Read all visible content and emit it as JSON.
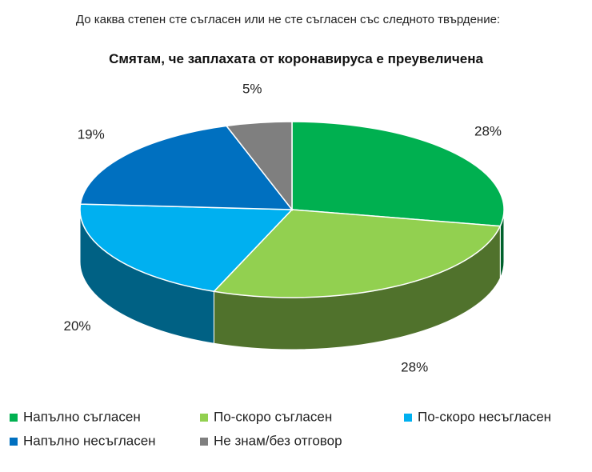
{
  "chart_data": {
    "type": "pie",
    "subtitle": "До каква степен сте съгласен или не сте съгласен със следното твърдение:",
    "title": "Смятам, че заплахата от коронавируса е преувеличена",
    "categories": [
      "Напълно съгласен",
      "По-скоро съгласен",
      "По-скоро несъгласен",
      "Напълно несъгласен",
      "Не знам/без отговор"
    ],
    "values": [
      28,
      28,
      20,
      19,
      5
    ],
    "value_labels": [
      "28%",
      "28%",
      "20%",
      "19%",
      "5%"
    ],
    "colors": [
      "#00b050",
      "#92d050",
      "#00b0f0",
      "#0070c0",
      "#7f7f7f"
    ]
  }
}
